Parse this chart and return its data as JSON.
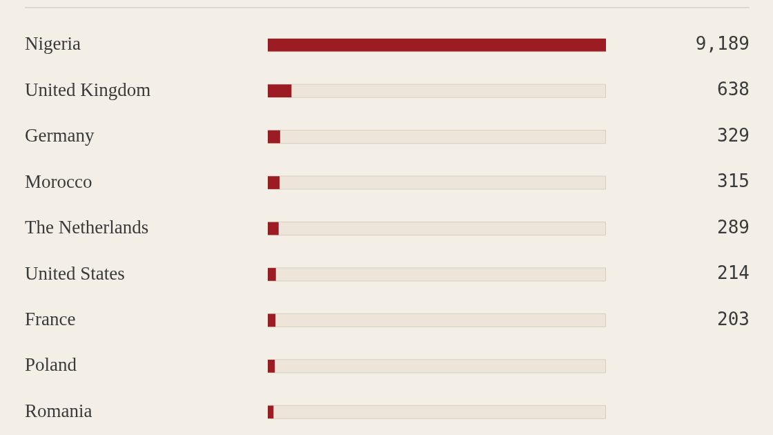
{
  "chart_data": {
    "type": "bar",
    "orientation": "horizontal",
    "categories": [
      "Nigeria",
      "United Kingdom",
      "Germany",
      "Morocco",
      "The Netherlands",
      "United States",
      "France",
      "Poland",
      "Romania"
    ],
    "values": [
      9189,
      638,
      329,
      315,
      289,
      214,
      203,
      185,
      150
    ],
    "value_labels": [
      "9,189",
      "638",
      "329",
      "315",
      "289",
      "214",
      "203",
      null,
      null
    ],
    "color": "#9b1c23",
    "xlim": [
      0,
      9189
    ],
    "tick_labels": "y"
  }
}
